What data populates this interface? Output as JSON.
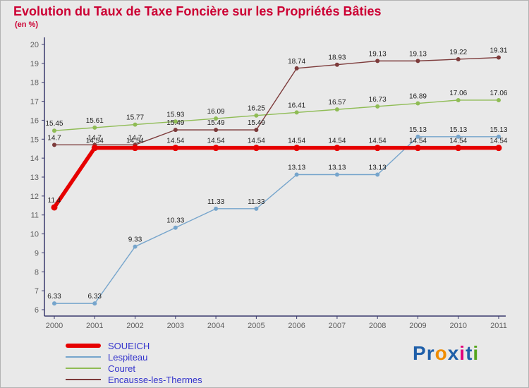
{
  "title": "Evolution du Taux de Taxe Foncière sur les Propriétés Bâties",
  "subtitle": "(en %)",
  "colors": {
    "title": "#cc0033",
    "background": "#e9e9e9",
    "axis": "#3b3b6e",
    "tick_text": "#606060",
    "label_text": "#1f1f1f",
    "legend_text": "#3333cc"
  },
  "chart_data": {
    "type": "line",
    "title": "Evolution du Taux de Taxe Foncière sur les Propriétés Bâties",
    "subtitle": "(en %)",
    "x": [
      2000,
      2001,
      2002,
      2003,
      2004,
      2005,
      2006,
      2007,
      2008,
      2009,
      2010,
      2011
    ],
    "ylim": [
      6,
      20
    ],
    "ytick_step": 1,
    "grid": false,
    "legend_position": "bottom-left",
    "series": [
      {
        "name": "SOUEICH",
        "color": "#e60000",
        "line_width": 5.5,
        "marker_radius": 4.5,
        "values": [
          11.4,
          14.54,
          14.54,
          14.54,
          14.54,
          14.54,
          14.54,
          14.54,
          14.54,
          14.54,
          14.54,
          14.54
        ],
        "labels": [
          "11.4",
          "14.54",
          "14.54",
          "14.54",
          "14.54",
          "14.54",
          "14.54",
          "14.54",
          "14.54",
          "14.54",
          "14.54",
          "14.54"
        ]
      },
      {
        "name": "Lespiteau",
        "color": "#76a5cc",
        "line_width": 1.4,
        "marker_radius": 3,
        "values": [
          6.33,
          6.33,
          9.33,
          10.33,
          11.33,
          11.33,
          13.13,
          13.13,
          13.13,
          15.13,
          15.13,
          15.13
        ],
        "labels": [
          "6.33",
          "6.33",
          "9.33",
          "10.33",
          "11.33",
          "11.33",
          "13.13",
          "13.13",
          "13.13",
          "15.13",
          "15.13",
          "15.13"
        ]
      },
      {
        "name": "Couret",
        "color": "#8fbc55",
        "line_width": 1.4,
        "marker_radius": 3,
        "values": [
          15.45,
          15.61,
          15.77,
          15.93,
          16.09,
          16.25,
          16.41,
          16.57,
          16.73,
          16.89,
          17.06,
          17.06
        ],
        "labels": [
          "15.45",
          "15.61",
          "15.77",
          "15.93",
          "16.09",
          "16.25",
          "16.41",
          "16.57",
          "16.73",
          "16.89",
          "17.06",
          "17.06"
        ]
      },
      {
        "name": "Encausse-les-Thermes",
        "color": "#7d3b3b",
        "line_width": 1.4,
        "marker_radius": 3,
        "values": [
          14.7,
          14.7,
          14.7,
          15.49,
          15.49,
          15.49,
          18.74,
          18.93,
          19.13,
          19.13,
          19.22,
          19.31
        ],
        "labels": [
          "14.7",
          "14.7",
          "14.7",
          "15.49",
          "15.49",
          "15.49",
          "18.74",
          "18.93",
          "19.13",
          "19.13",
          "19.22",
          "19.31"
        ]
      }
    ]
  },
  "legend": {
    "items": [
      "SOUEICH",
      "Lespiteau",
      "Couret",
      "Encausse-les-Thermes"
    ]
  },
  "logo": {
    "text": "Proxiti",
    "letters": [
      {
        "ch": "P",
        "color": "#1f5fa9"
      },
      {
        "ch": "r",
        "color": "#1f5fa9"
      },
      {
        "ch": "o",
        "color": "#f08c00"
      },
      {
        "ch": "x",
        "color": "#1f5fa9"
      },
      {
        "ch": "i",
        "color": "#e2007a"
      },
      {
        "ch": "t",
        "color": "#1f5fa9"
      },
      {
        "ch": "i",
        "color": "#55a51c"
      }
    ]
  }
}
